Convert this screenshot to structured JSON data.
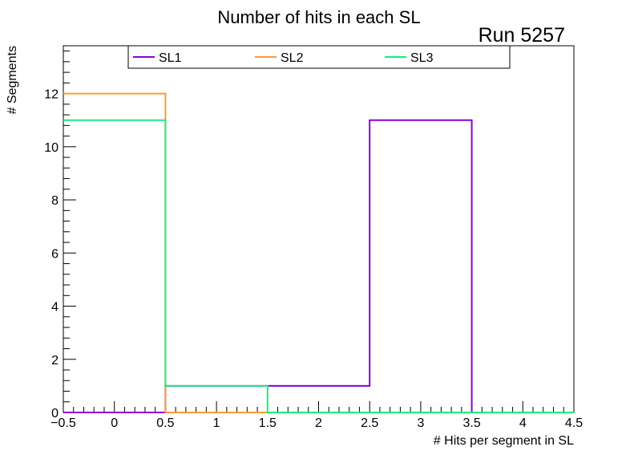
{
  "chart_data": {
    "type": "histogram",
    "title": "Number of hits in each SL",
    "annotation": "Run 5257",
    "xlabel": "# Hits per segment in SL",
    "ylabel": "# Segments",
    "xlim": [
      -0.5,
      4.5
    ],
    "ylim": [
      0,
      13.8
    ],
    "x_ticks": [
      -0.5,
      0,
      0.5,
      1,
      1.5,
      2,
      2.5,
      3,
      3.5,
      4,
      4.5
    ],
    "x_tick_labels": [
      "−0.5",
      "0",
      "0.5",
      "1",
      "1.5",
      "2",
      "2.5",
      "3",
      "3.5",
      "4",
      "4.5"
    ],
    "y_ticks": [
      0,
      2,
      4,
      6,
      8,
      10,
      12
    ],
    "y_tick_labels": [
      "0",
      "2",
      "4",
      "6",
      "8",
      "10",
      "12"
    ],
    "bin_edges": [
      -0.5,
      0.5,
      1.5,
      2.5,
      3.5,
      4.5
    ],
    "legend_position": "top",
    "series": [
      {
        "name": "SL1",
        "color": "#8b00d6",
        "values": [
          0,
          1,
          1,
          11,
          0
        ]
      },
      {
        "name": "SL2",
        "color": "#ff9a33",
        "values": [
          12,
          0,
          0,
          0,
          0
        ]
      },
      {
        "name": "SL3",
        "color": "#19ed7a",
        "values": [
          11,
          1,
          0,
          0,
          0
        ]
      }
    ]
  }
}
